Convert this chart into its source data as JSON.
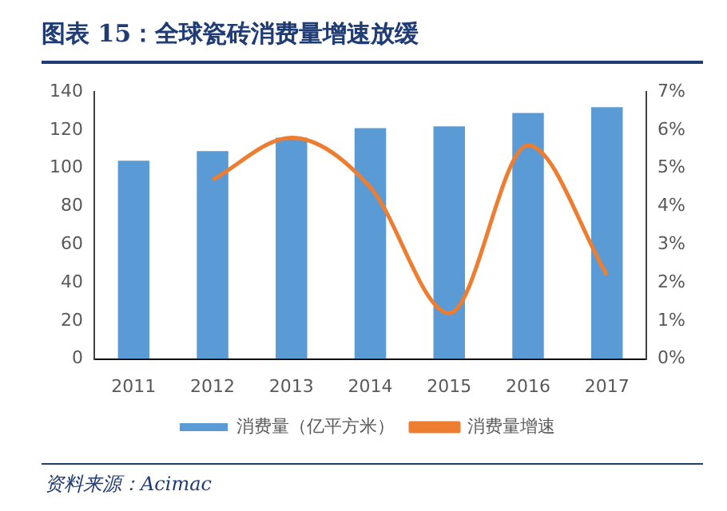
{
  "chart_data": {
    "type": "bar",
    "title": "图表 15：全球瓷砖消费量增速放缓",
    "categories": [
      "2011",
      "2012",
      "2013",
      "2014",
      "2015",
      "2016",
      "2017"
    ],
    "series": [
      {
        "name": "消费量（亿平方米）",
        "color": "#5b9bd5",
        "values": [
          104,
          109,
          116,
          121,
          122,
          129,
          132
        ]
      },
      {
        "name": "消费量增速",
        "type": "line",
        "axis": "y2",
        "color": "#ed7d31",
        "values": [
          null,
          4.7,
          5.8,
          4.5,
          1.2,
          5.6,
          2.2
        ]
      }
    ],
    "ylim": [
      0,
      140
    ],
    "yticks": [
      0,
      20,
      40,
      60,
      80,
      100,
      120,
      140
    ],
    "y2lim": [
      0,
      7
    ],
    "y2ticks": [
      {
        "value": 0,
        "label": "0%"
      },
      {
        "value": 1,
        "label": "1%"
      },
      {
        "value": 2,
        "label": "2%"
      },
      {
        "value": 3,
        "label": "3%"
      },
      {
        "value": 4,
        "label": "4%"
      },
      {
        "value": 5,
        "label": "5%"
      },
      {
        "value": 6,
        "label": "6%"
      },
      {
        "value": 7,
        "label": "7%"
      }
    ],
    "grid": false,
    "legend": "bottom",
    "marker": "none",
    "annotations": [
      "资料来源：Acimac"
    ]
  }
}
